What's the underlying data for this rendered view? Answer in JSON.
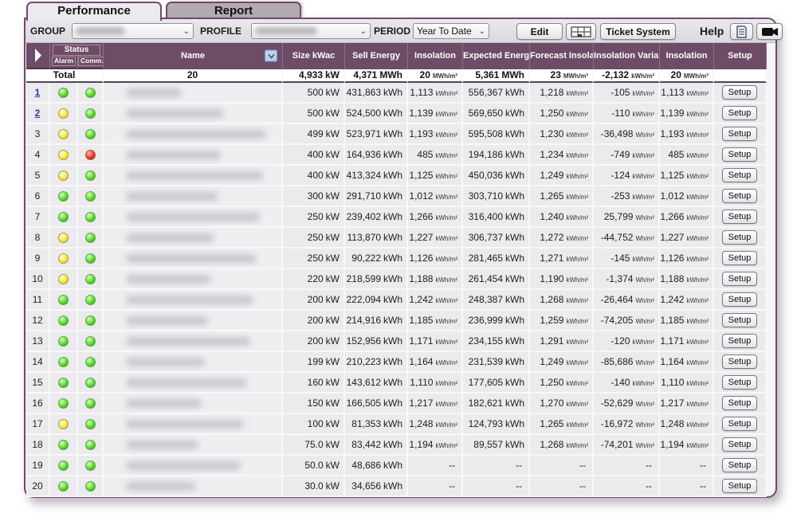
{
  "tabs": [
    {
      "label": "Performance",
      "active": true
    },
    {
      "label": "Report",
      "active": false
    }
  ],
  "toolbar": {
    "group_label": "GROUP",
    "profile_label": "PROFILE",
    "period_label": "PERIOD",
    "period_value": "Year To Date",
    "edit_button": "Edit",
    "ticket_button": "Ticket System",
    "help_label": "Help",
    "icons": {
      "grid_button": "table-grid-icon",
      "help_doc_button": "document-icon",
      "help_video_button": "video-camera-icon"
    }
  },
  "colors": {
    "header_purple": "#6e4b66",
    "border_purple": "#714a6d",
    "status_green": "#55dd22",
    "status_yellow": "#f2ea3a",
    "status_red": "#ee3322",
    "link_blue": "#2b3f9e"
  },
  "table": {
    "header": {
      "status": "Status",
      "alarm": "Alarm",
      "comm": "Comm.",
      "name": "Name",
      "size": "Size kWac",
      "sell": "Sell Energy",
      "insolation": "Insolation",
      "expected": "Expected Energy",
      "forecast": "Forecast Insolation",
      "variance": "Insolation Variance",
      "insolation2": "Insolation",
      "setup": "Setup",
      "sort_icon": "chevron-down-icon",
      "expand_icon": "arrow-right-icon"
    },
    "setup_label": "Setup",
    "total": {
      "label": "Total",
      "count": "20",
      "size": {
        "v": "4,933",
        "u": "kW"
      },
      "sell": {
        "v": "4,371",
        "u": "MWh"
      },
      "insolation": {
        "v": "20",
        "u": "MWh/m²"
      },
      "expected": {
        "v": "5,361",
        "u": "MWh"
      },
      "forecast": {
        "v": "23",
        "u": "MWh/m²"
      },
      "variance": {
        "v": "-2,132",
        "u": "kWh/m²"
      },
      "insolation2": {
        "v": "20",
        "u": "MWh/m²"
      }
    },
    "rows": [
      {
        "num": "1",
        "link": true,
        "alarm": "green",
        "comm": "green",
        "size": {
          "v": "500",
          "u": "kW"
        },
        "sell": {
          "v": "431,863",
          "u": "kWh"
        },
        "insolation": {
          "v": "1,113",
          "u": "kWh/m²"
        },
        "expected": {
          "v": "556,367",
          "u": "kWh"
        },
        "forecast": {
          "v": "1,218",
          "u": "kWh/m²"
        },
        "variance": {
          "v": "-105",
          "u": "kWh/m²"
        },
        "insolation2": {
          "v": "1,113",
          "u": "kWh/m²"
        }
      },
      {
        "num": "2",
        "link": true,
        "alarm": "yellow",
        "comm": "green",
        "size": {
          "v": "500",
          "u": "kW"
        },
        "sell": {
          "v": "524,500",
          "u": "kWh"
        },
        "insolation": {
          "v": "1,139",
          "u": "kWh/m²"
        },
        "expected": {
          "v": "569,650",
          "u": "kWh"
        },
        "forecast": {
          "v": "1,250",
          "u": "kWh/m²"
        },
        "variance": {
          "v": "-110",
          "u": "kWh/m²"
        },
        "insolation2": {
          "v": "1,139",
          "u": "kWh/m²"
        }
      },
      {
        "num": "3",
        "link": false,
        "alarm": "yellow",
        "comm": "green",
        "size": {
          "v": "499",
          "u": "kW"
        },
        "sell": {
          "v": "523,971",
          "u": "kWh"
        },
        "insolation": {
          "v": "1,193",
          "u": "kWh/m²"
        },
        "expected": {
          "v": "595,508",
          "u": "kWh"
        },
        "forecast": {
          "v": "1,230",
          "u": "kWh/m²"
        },
        "variance": {
          "v": "-36,498",
          "u": "Wh/m²"
        },
        "insolation2": {
          "v": "1,193",
          "u": "kWh/m²"
        }
      },
      {
        "num": "4",
        "link": false,
        "alarm": "yellow",
        "comm": "red",
        "size": {
          "v": "400",
          "u": "kW"
        },
        "sell": {
          "v": "164,936",
          "u": "kWh"
        },
        "insolation": {
          "v": "485",
          "u": "kWh/m²"
        },
        "expected": {
          "v": "194,186",
          "u": "kWh"
        },
        "forecast": {
          "v": "1,234",
          "u": "kWh/m²"
        },
        "variance": {
          "v": "-749",
          "u": "kWh/m²"
        },
        "insolation2": {
          "v": "485",
          "u": "kWh/m²"
        }
      },
      {
        "num": "5",
        "link": false,
        "alarm": "yellow",
        "comm": "green",
        "size": {
          "v": "400",
          "u": "kW"
        },
        "sell": {
          "v": "413,324",
          "u": "kWh"
        },
        "insolation": {
          "v": "1,125",
          "u": "kWh/m²"
        },
        "expected": {
          "v": "450,036",
          "u": "kWh"
        },
        "forecast": {
          "v": "1,249",
          "u": "kWh/m²"
        },
        "variance": {
          "v": "-124",
          "u": "kWh/m²"
        },
        "insolation2": {
          "v": "1,125",
          "u": "kWh/m²"
        }
      },
      {
        "num": "6",
        "link": false,
        "alarm": "green",
        "comm": "green",
        "size": {
          "v": "300",
          "u": "kW"
        },
        "sell": {
          "v": "291,710",
          "u": "kWh"
        },
        "insolation": {
          "v": "1,012",
          "u": "kWh/m²"
        },
        "expected": {
          "v": "303,710",
          "u": "kWh"
        },
        "forecast": {
          "v": "1,265",
          "u": "kWh/m²"
        },
        "variance": {
          "v": "-253",
          "u": "kWh/m²"
        },
        "insolation2": {
          "v": "1,012",
          "u": "kWh/m²"
        }
      },
      {
        "num": "7",
        "link": false,
        "alarm": "green",
        "comm": "green",
        "size": {
          "v": "250",
          "u": "kW"
        },
        "sell": {
          "v": "239,402",
          "u": "kWh"
        },
        "insolation": {
          "v": "1,266",
          "u": "kWh/m²"
        },
        "expected": {
          "v": "316,400",
          "u": "kWh"
        },
        "forecast": {
          "v": "1,240",
          "u": "kWh/m²"
        },
        "variance": {
          "v": "25,799",
          "u": "Wh/m²"
        },
        "insolation2": {
          "v": "1,266",
          "u": "kWh/m²"
        }
      },
      {
        "num": "8",
        "link": false,
        "alarm": "yellow",
        "comm": "green",
        "size": {
          "v": "250",
          "u": "kW"
        },
        "sell": {
          "v": "113,870",
          "u": "kWh"
        },
        "insolation": {
          "v": "1,227",
          "u": "kWh/m²"
        },
        "expected": {
          "v": "306,737",
          "u": "kWh"
        },
        "forecast": {
          "v": "1,272",
          "u": "kWh/m²"
        },
        "variance": {
          "v": "-44,752",
          "u": "Wh/m²"
        },
        "insolation2": {
          "v": "1,227",
          "u": "kWh/m²"
        }
      },
      {
        "num": "9",
        "link": false,
        "alarm": "yellow",
        "comm": "green",
        "size": {
          "v": "250",
          "u": "kW"
        },
        "sell": {
          "v": "90,222",
          "u": "kWh"
        },
        "insolation": {
          "v": "1,126",
          "u": "kWh/m²"
        },
        "expected": {
          "v": "281,465",
          "u": "kWh"
        },
        "forecast": {
          "v": "1,271",
          "u": "kWh/m²"
        },
        "variance": {
          "v": "-145",
          "u": "kWh/m²"
        },
        "insolation2": {
          "v": "1,126",
          "u": "kWh/m²"
        }
      },
      {
        "num": "10",
        "link": false,
        "alarm": "yellow",
        "comm": "green",
        "size": {
          "v": "220",
          "u": "kW"
        },
        "sell": {
          "v": "218,599",
          "u": "kWh"
        },
        "insolation": {
          "v": "1,188",
          "u": "kWh/m²"
        },
        "expected": {
          "v": "261,454",
          "u": "kWh"
        },
        "forecast": {
          "v": "1,190",
          "u": "kWh/m²"
        },
        "variance": {
          "v": "-1,374",
          "u": "Wh/m²"
        },
        "insolation2": {
          "v": "1,188",
          "u": "kWh/m²"
        }
      },
      {
        "num": "11",
        "link": false,
        "alarm": "green",
        "comm": "green",
        "size": {
          "v": "200",
          "u": "kW"
        },
        "sell": {
          "v": "222,094",
          "u": "kWh"
        },
        "insolation": {
          "v": "1,242",
          "u": "kWh/m²"
        },
        "expected": {
          "v": "248,387",
          "u": "kWh"
        },
        "forecast": {
          "v": "1,268",
          "u": "kWh/m²"
        },
        "variance": {
          "v": "-26,464",
          "u": "Wh/m²"
        },
        "insolation2": {
          "v": "1,242",
          "u": "kWh/m²"
        }
      },
      {
        "num": "12",
        "link": false,
        "alarm": "green",
        "comm": "green",
        "size": {
          "v": "200",
          "u": "kW"
        },
        "sell": {
          "v": "214,916",
          "u": "kWh"
        },
        "insolation": {
          "v": "1,185",
          "u": "kWh/m²"
        },
        "expected": {
          "v": "236,999",
          "u": "kWh"
        },
        "forecast": {
          "v": "1,259",
          "u": "kWh/m²"
        },
        "variance": {
          "v": "-74,205",
          "u": "Wh/m²"
        },
        "insolation2": {
          "v": "1,185",
          "u": "kWh/m²"
        }
      },
      {
        "num": "13",
        "link": false,
        "alarm": "green",
        "comm": "green",
        "size": {
          "v": "200",
          "u": "kW"
        },
        "sell": {
          "v": "152,956",
          "u": "kWh"
        },
        "insolation": {
          "v": "1,171",
          "u": "kWh/m²"
        },
        "expected": {
          "v": "234,155",
          "u": "kWh"
        },
        "forecast": {
          "v": "1,291",
          "u": "kWh/m²"
        },
        "variance": {
          "v": "-120",
          "u": "kWh/m²"
        },
        "insolation2": {
          "v": "1,171",
          "u": "kWh/m²"
        }
      },
      {
        "num": "14",
        "link": false,
        "alarm": "green",
        "comm": "green",
        "size": {
          "v": "199",
          "u": "kW"
        },
        "sell": {
          "v": "210,223",
          "u": "kWh"
        },
        "insolation": {
          "v": "1,164",
          "u": "kWh/m²"
        },
        "expected": {
          "v": "231,539",
          "u": "kWh"
        },
        "forecast": {
          "v": "1,249",
          "u": "kWh/m²"
        },
        "variance": {
          "v": "-85,686",
          "u": "Wh/m²"
        },
        "insolation2": {
          "v": "1,164",
          "u": "kWh/m²"
        }
      },
      {
        "num": "15",
        "link": false,
        "alarm": "green",
        "comm": "green",
        "size": {
          "v": "160",
          "u": "kW"
        },
        "sell": {
          "v": "143,612",
          "u": "kWh"
        },
        "insolation": {
          "v": "1,110",
          "u": "kWh/m²"
        },
        "expected": {
          "v": "177,605",
          "u": "kWh"
        },
        "forecast": {
          "v": "1,250",
          "u": "kWh/m²"
        },
        "variance": {
          "v": "-140",
          "u": "kWh/m²"
        },
        "insolation2": {
          "v": "1,110",
          "u": "kWh/m²"
        }
      },
      {
        "num": "16",
        "link": false,
        "alarm": "green",
        "comm": "green",
        "size": {
          "v": "150",
          "u": "kW"
        },
        "sell": {
          "v": "166,505",
          "u": "kWh"
        },
        "insolation": {
          "v": "1,217",
          "u": "kWh/m²"
        },
        "expected": {
          "v": "182,621",
          "u": "kWh"
        },
        "forecast": {
          "v": "1,270",
          "u": "kWh/m²"
        },
        "variance": {
          "v": "-52,629",
          "u": "Wh/m²"
        },
        "insolation2": {
          "v": "1,217",
          "u": "kWh/m²"
        }
      },
      {
        "num": "17",
        "link": false,
        "alarm": "yellow",
        "comm": "green",
        "size": {
          "v": "100",
          "u": "kW"
        },
        "sell": {
          "v": "81,353",
          "u": "kWh"
        },
        "insolation": {
          "v": "1,248",
          "u": "kWh/m²"
        },
        "expected": {
          "v": "124,793",
          "u": "kWh"
        },
        "forecast": {
          "v": "1,265",
          "u": "kWh/m²"
        },
        "variance": {
          "v": "-16,972",
          "u": "Wh/m²"
        },
        "insolation2": {
          "v": "1,248",
          "u": "kWh/m²"
        }
      },
      {
        "num": "18",
        "link": false,
        "alarm": "green",
        "comm": "green",
        "size": {
          "v": "75.0",
          "u": "kW"
        },
        "sell": {
          "v": "83,442",
          "u": "kWh"
        },
        "insolation": {
          "v": "1,194",
          "u": "kWh/m²"
        },
        "expected": {
          "v": "89,557",
          "u": "kWh"
        },
        "forecast": {
          "v": "1,268",
          "u": "kWh/m²"
        },
        "variance": {
          "v": "-74,201",
          "u": "Wh/m²"
        },
        "insolation2": {
          "v": "1,194",
          "u": "kWh/m²"
        }
      },
      {
        "num": "19",
        "link": false,
        "alarm": "green",
        "comm": "green",
        "size": {
          "v": "50.0",
          "u": "kW"
        },
        "sell": {
          "v": "48,686",
          "u": "kWh"
        },
        "insolation": {
          "v": "--",
          "u": ""
        },
        "expected": {
          "v": "--",
          "u": ""
        },
        "forecast": {
          "v": "--",
          "u": ""
        },
        "variance": {
          "v": "--",
          "u": ""
        },
        "insolation2": {
          "v": "--",
          "u": ""
        }
      },
      {
        "num": "20",
        "link": false,
        "alarm": "green",
        "comm": "green",
        "size": {
          "v": "30.0",
          "u": "kW"
        },
        "sell": {
          "v": "34,656",
          "u": "kWh"
        },
        "insolation": {
          "v": "--",
          "u": ""
        },
        "expected": {
          "v": "--",
          "u": ""
        },
        "forecast": {
          "v": "--",
          "u": ""
        },
        "variance": {
          "v": "--",
          "u": ""
        },
        "insolation2": {
          "v": "--",
          "u": ""
        }
      }
    ]
  }
}
